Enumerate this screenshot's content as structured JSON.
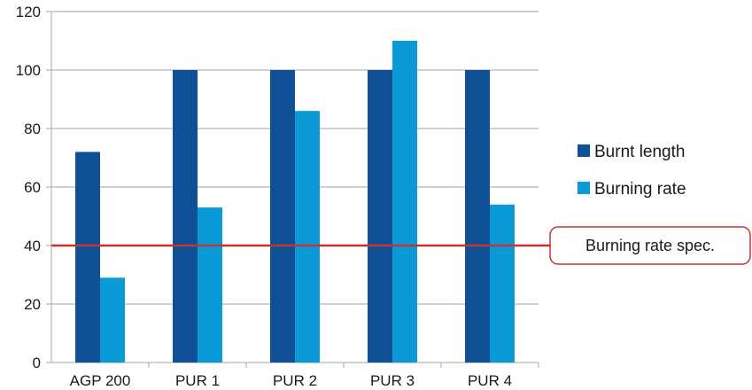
{
  "chart_data": {
    "type": "bar",
    "categories": [
      "AGP 200",
      "PUR 1",
      "PUR 2",
      "PUR 3",
      "PUR 4"
    ],
    "series": [
      {
        "name": "Burnt length",
        "values": [
          72,
          100,
          100,
          100,
          100
        ],
        "color": "#0e4f96"
      },
      {
        "name": "Burning rate",
        "values": [
          29,
          53,
          86,
          110,
          54
        ],
        "color": "#0a9ad8"
      }
    ],
    "ylim": [
      0,
      120
    ],
    "yticks": [
      0,
      20,
      40,
      60,
      80,
      100,
      120
    ],
    "grid": true,
    "legend": "right",
    "reference_line": {
      "value": 40,
      "label": "Burning rate spec.",
      "color": "#c03530"
    }
  }
}
